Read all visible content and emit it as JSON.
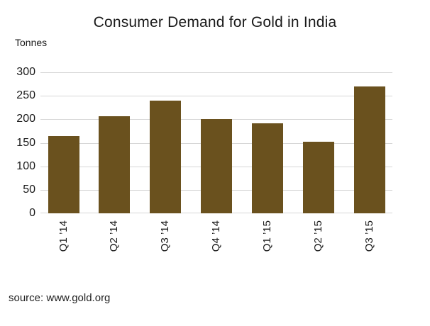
{
  "source": "source: www.gold.org",
  "colors": {
    "bar": "#6a511e",
    "gridline": "#d6d6d6",
    "text": "#1a1a1a"
  },
  "chart_data": {
    "type": "bar",
    "title": "Consumer Demand for Gold in India",
    "ylabel": "Tonnes",
    "xlabel": "",
    "categories": [
      "Q1 ’14",
      "Q2 ’14",
      "Q3 ’14",
      "Q4 ’14",
      "Q1 ’15",
      "Q2 ’15",
      "Q3 ’15"
    ],
    "values": [
      165,
      207,
      240,
      200,
      192,
      152,
      270
    ],
    "ylim": [
      0,
      300
    ],
    "yticks": [
      0,
      50,
      100,
      150,
      200,
      250,
      300
    ],
    "grid": true,
    "legend": false,
    "annotation": "x-axis labels rotated 90 degrees"
  }
}
